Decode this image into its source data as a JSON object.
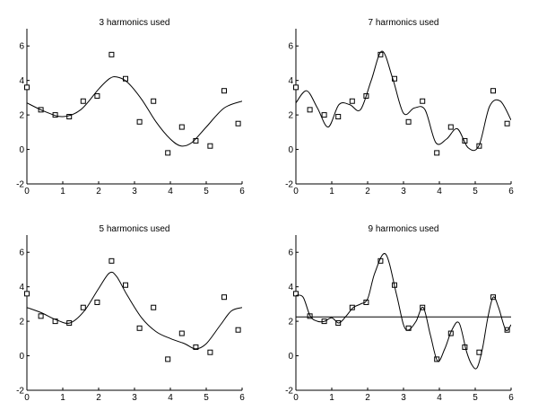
{
  "chart_data": [
    {
      "type": "line",
      "title": "3 harmonics used",
      "xlim": [
        0,
        6
      ],
      "ylim": [
        -2,
        7
      ],
      "xticks": [
        "0",
        "1",
        "2",
        "3",
        "4",
        "5",
        "6"
      ],
      "yticks": [
        "-2",
        "0",
        "2",
        "4",
        "6"
      ],
      "grid": false,
      "series": [
        {
          "kind": "scatter",
          "marker": "open-square",
          "x": [
            0,
            0.39,
            0.79,
            1.18,
            1.57,
            1.96,
            2.36,
            2.75,
            3.14,
            3.53,
            3.93,
            4.32,
            4.71,
            5.11,
            5.5,
            5.89
          ],
          "y": [
            3.6,
            2.3,
            2.0,
            1.9,
            2.8,
            3.1,
            5.5,
            4.1,
            1.6,
            2.8,
            -0.2,
            1.3,
            0.5,
            0.2,
            3.4,
            1.5
          ]
        },
        {
          "kind": "line",
          "x": [
            0,
            0.5,
            1.0,
            1.5,
            2.0,
            2.3,
            2.5,
            2.8,
            3.2,
            3.6,
            4.0,
            4.3,
            4.6,
            5.0,
            5.5,
            6.0
          ],
          "y": [
            2.7,
            2.2,
            1.9,
            2.3,
            3.5,
            4.1,
            4.2,
            3.9,
            2.9,
            1.6,
            0.6,
            0.2,
            0.4,
            1.3,
            2.4,
            2.8
          ]
        }
      ]
    },
    {
      "type": "line",
      "title": "7 harmonics used",
      "xlim": [
        0,
        6
      ],
      "ylim": [
        -2,
        7
      ],
      "xticks": [
        "0",
        "1",
        "2",
        "3",
        "4",
        "5",
        "6"
      ],
      "yticks": [
        "-2",
        "0",
        "2",
        "4",
        "6"
      ],
      "grid": false,
      "series": [
        {
          "kind": "scatter",
          "marker": "open-square",
          "x": [
            0,
            0.39,
            0.79,
            1.18,
            1.57,
            1.96,
            2.36,
            2.75,
            3.14,
            3.53,
            3.93,
            4.32,
            4.71,
            5.11,
            5.5,
            5.89
          ],
          "y": [
            3.6,
            2.3,
            2.0,
            1.9,
            2.8,
            3.1,
            5.5,
            4.1,
            1.6,
            2.8,
            -0.2,
            1.3,
            0.5,
            0.2,
            3.4,
            1.5
          ]
        },
        {
          "kind": "line",
          "x": [
            0,
            0.3,
            0.6,
            0.9,
            1.2,
            1.5,
            1.8,
            2.1,
            2.4,
            2.7,
            3.0,
            3.3,
            3.6,
            3.9,
            4.2,
            4.5,
            4.8,
            5.1,
            5.4,
            5.7,
            6.0
          ],
          "y": [
            2.7,
            3.4,
            2.4,
            1.3,
            2.6,
            2.6,
            2.3,
            4.0,
            5.7,
            4.1,
            2.1,
            2.4,
            2.3,
            0.4,
            0.6,
            1.2,
            0.1,
            0.2,
            2.5,
            2.8,
            1.7
          ]
        }
      ]
    },
    {
      "type": "line",
      "title": "5 harmonics used",
      "xlim": [
        0,
        6
      ],
      "ylim": [
        -2,
        7
      ],
      "xticks": [
        "0",
        "1",
        "2",
        "3",
        "4",
        "5",
        "6"
      ],
      "yticks": [
        "-2",
        "0",
        "2",
        "4",
        "6"
      ],
      "grid": false,
      "series": [
        {
          "kind": "scatter",
          "marker": "open-square",
          "x": [
            0,
            0.39,
            0.79,
            1.18,
            1.57,
            1.96,
            2.36,
            2.75,
            3.14,
            3.53,
            3.93,
            4.32,
            4.71,
            5.11,
            5.5,
            5.89
          ],
          "y": [
            3.6,
            2.3,
            2.0,
            1.9,
            2.8,
            3.1,
            5.5,
            4.1,
            1.6,
            2.8,
            -0.2,
            1.3,
            0.5,
            0.2,
            3.4,
            1.5
          ]
        },
        {
          "kind": "line",
          "x": [
            0,
            0.4,
            0.8,
            1.2,
            1.6,
            2.0,
            2.3,
            2.5,
            2.8,
            3.2,
            3.6,
            4.0,
            4.4,
            4.7,
            5.0,
            5.4,
            5.7,
            6.0
          ],
          "y": [
            2.8,
            2.5,
            2.1,
            1.9,
            2.6,
            3.9,
            4.8,
            4.6,
            3.5,
            2.2,
            1.4,
            1.0,
            0.7,
            0.4,
            0.7,
            1.8,
            2.6,
            2.8
          ]
        }
      ]
    },
    {
      "type": "line",
      "title": "9 harmonics used",
      "xlim": [
        0,
        6
      ],
      "ylim": [
        -2,
        7
      ],
      "xticks": [
        "0",
        "1",
        "2",
        "3",
        "4",
        "5",
        "6"
      ],
      "yticks": [
        "-2",
        "0",
        "2",
        "4",
        "6"
      ],
      "grid": false,
      "series": [
        {
          "kind": "scatter",
          "marker": "open-square",
          "x": [
            0,
            0.39,
            0.79,
            1.18,
            1.57,
            1.96,
            2.36,
            2.75,
            3.14,
            3.53,
            3.93,
            4.32,
            4.71,
            5.11,
            5.5,
            5.89
          ],
          "y": [
            3.6,
            2.3,
            2.0,
            1.9,
            2.8,
            3.1,
            5.5,
            4.1,
            1.6,
            2.8,
            -0.2,
            1.3,
            0.5,
            0.2,
            3.4,
            1.5
          ]
        },
        {
          "kind": "line",
          "x": [
            0,
            0.2,
            0.4,
            0.6,
            0.8,
            1.0,
            1.2,
            1.4,
            1.6,
            1.8,
            2.0,
            2.2,
            2.5,
            2.8,
            3.0,
            3.15,
            3.35,
            3.55,
            3.75,
            3.95,
            4.15,
            4.35,
            4.55,
            4.75,
            4.9,
            5.05,
            5.2,
            5.35,
            5.5,
            5.65,
            5.85,
            6.0
          ],
          "y": [
            3.5,
            3.4,
            2.3,
            2.0,
            2.0,
            2.2,
            1.9,
            2.3,
            2.8,
            3.0,
            3.3,
            4.8,
            5.9,
            3.6,
            1.8,
            1.5,
            2.0,
            2.8,
            1.2,
            -0.3,
            0.4,
            1.5,
            1.9,
            0.3,
            -0.5,
            -0.7,
            0.4,
            2.2,
            3.4,
            2.8,
            1.5,
            1.8
          ]
        },
        {
          "kind": "hline",
          "y": 2.25
        }
      ]
    }
  ]
}
